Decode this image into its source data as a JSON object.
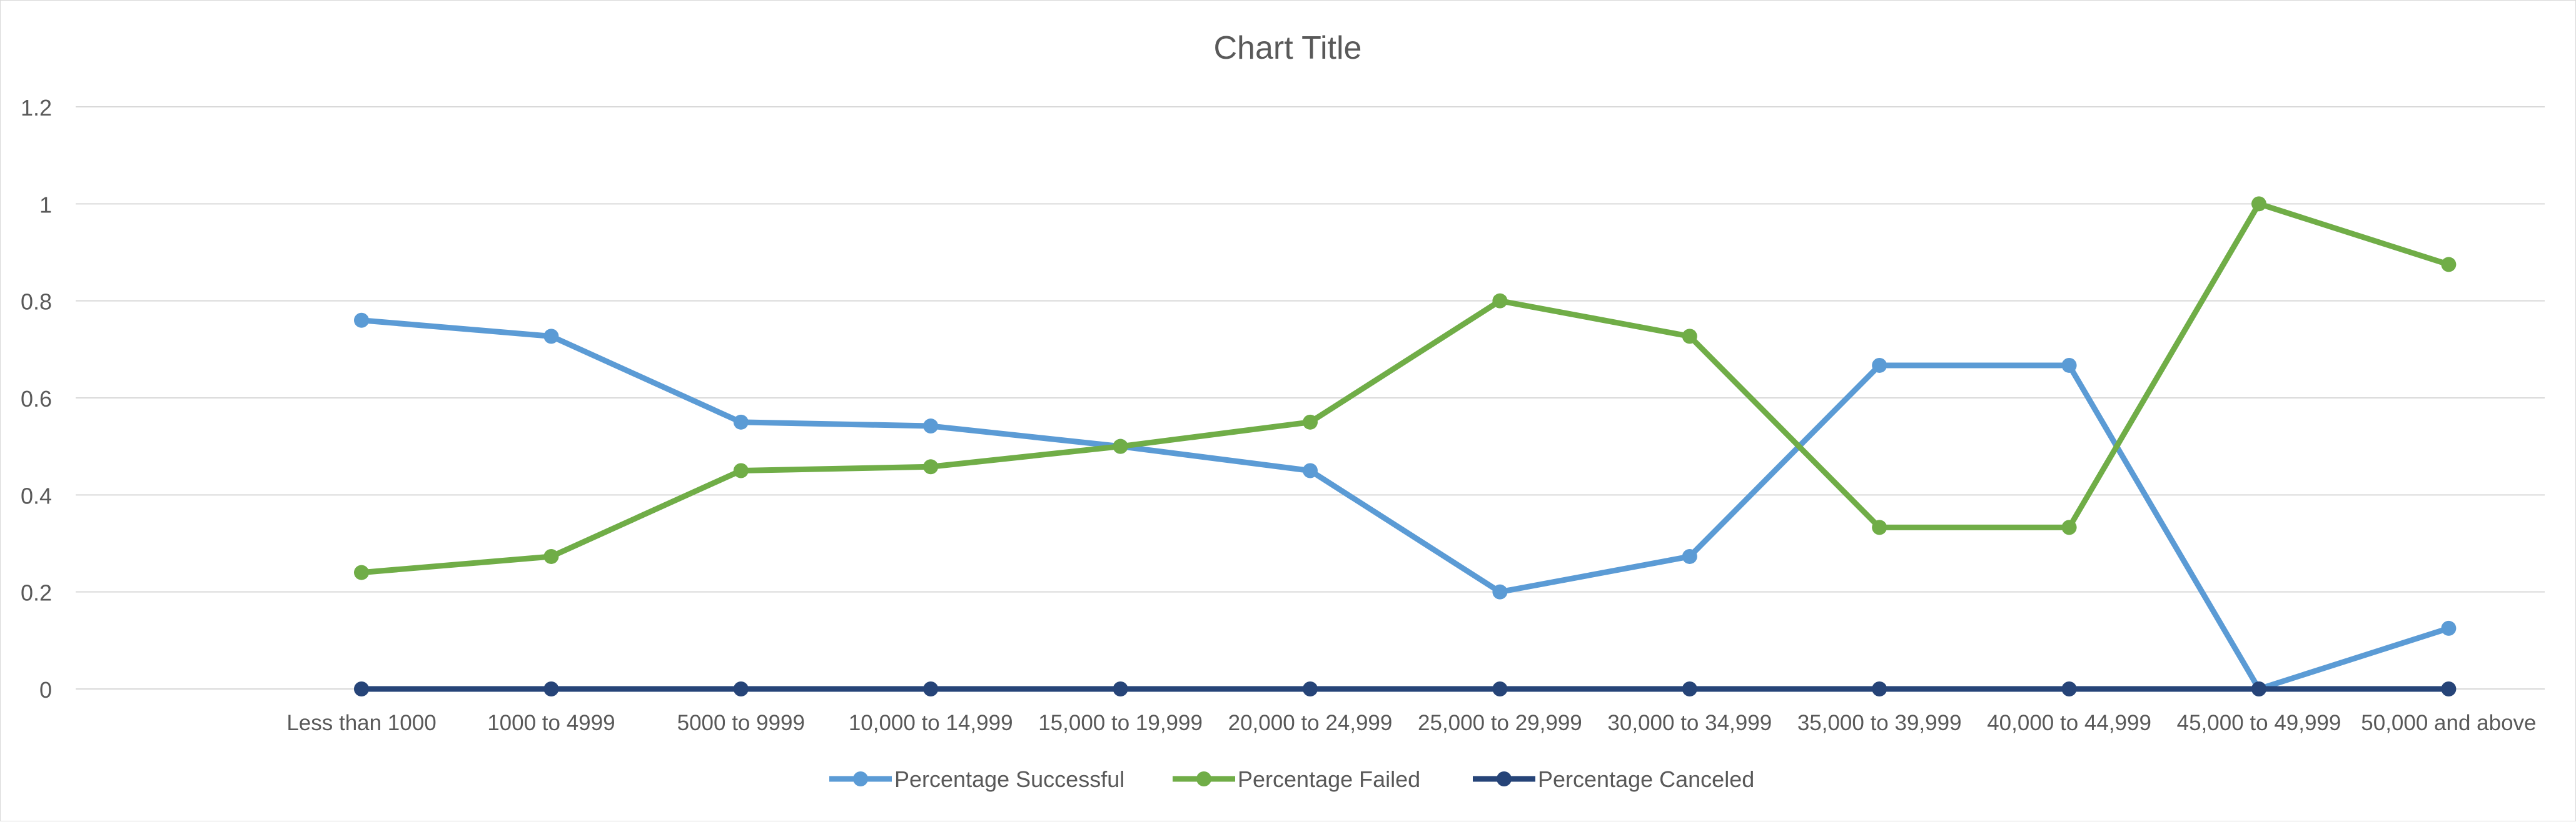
{
  "chart_data": {
    "type": "line",
    "title": "Chart Title",
    "xlabel": "",
    "ylabel": "",
    "ylim": [
      0,
      1.2
    ],
    "yticks": [
      "0",
      "0.2",
      "0.4",
      "0.6",
      "0.8",
      "1",
      "1.2"
    ],
    "ytick_values": [
      0,
      0.2,
      0.4,
      0.6,
      0.8,
      1,
      1.2
    ],
    "grid": true,
    "legend_position": "bottom",
    "categories": [
      "Less than 1000",
      "1000 to 4999",
      "5000 to 9999",
      "10,000 to 14,999",
      "15,000 to 19,999",
      "20,000 to 24,999",
      "25,000 to 29,999",
      "30,000 to 34,999",
      "35,000 to 39,999",
      "40,000 to 44,999",
      "45,000 to 49,999",
      "50,000 and above"
    ],
    "series": [
      {
        "name": "Percentage Successful",
        "color": "#5b9bd5",
        "values": [
          0.76,
          0.727,
          0.55,
          0.542,
          0.5,
          0.45,
          0.2,
          0.273,
          0.667,
          0.667,
          0,
          0.125
        ]
      },
      {
        "name": "Percentage Failed",
        "color": "#70ad47",
        "values": [
          0.24,
          0.273,
          0.45,
          0.458,
          0.5,
          0.55,
          0.8,
          0.727,
          0.333,
          0.333,
          1,
          0.875
        ]
      },
      {
        "name": "Percentage Canceled",
        "color": "#264478",
        "values": [
          0,
          0,
          0,
          0,
          0,
          0,
          0,
          0,
          0,
          0,
          0,
          0
        ]
      }
    ]
  }
}
